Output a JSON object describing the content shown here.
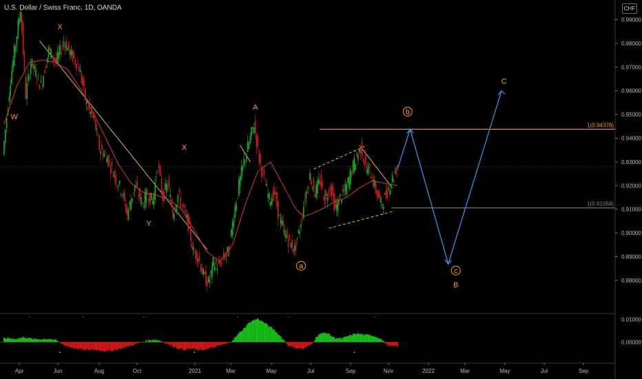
{
  "header": {
    "title": "U.S. Dollar / Swiss Franc, 1D, OANDA",
    "currency_badge": "CHF"
  },
  "colors": {
    "background": "#000000",
    "bull": "#22a82a",
    "bear": "#c62020",
    "ma": "#c23a37",
    "trendline": "#e1b84a",
    "fib": "#ff9d1f",
    "projection": "#3e8fe0",
    "wave_label": "#ff9d1f",
    "dashed_channel": "#f2c232",
    "osc_pos": "#18c218",
    "osc_neg": "#d01818"
  },
  "chart_data": [
    {
      "type": "candlestick",
      "title": "U.S. Dollar / Swiss Franc, 1D, OANDA",
      "ylim": [
        0.875,
        0.995
      ],
      "y_ticks": [
        "0.99000",
        "0.98000",
        "0.97000",
        "0.96000",
        "0.95000",
        "0.94000",
        "0.93000",
        "0.92000",
        "0.91000",
        "0.90000",
        "0.89000",
        "0.88000"
      ],
      "x_ticks": [
        "Apr",
        "Jun",
        "Aug",
        "Oct",
        "2021",
        "Mar",
        "May",
        "Jul",
        "Sep",
        "Nov",
        "2022",
        "Mar",
        "May",
        "Jul",
        "Sep"
      ],
      "price_path": [
        [
          0,
          0.933
        ],
        [
          3,
          0.965
        ],
        [
          5,
          0.98
        ],
        [
          7,
          0.995
        ],
        [
          9,
          0.958
        ],
        [
          11,
          0.972
        ],
        [
          15,
          0.962
        ],
        [
          18,
          0.977
        ],
        [
          21,
          0.972
        ],
        [
          24,
          0.981
        ],
        [
          27,
          0.975
        ],
        [
          30,
          0.97
        ],
        [
          33,
          0.954
        ],
        [
          36,
          0.947
        ],
        [
          38,
          0.936
        ],
        [
          41,
          0.932
        ],
        [
          44,
          0.924
        ],
        [
          47,
          0.917
        ],
        [
          49,
          0.908
        ],
        [
          52,
          0.92
        ],
        [
          55,
          0.912
        ],
        [
          57,
          0.917
        ],
        [
          59,
          0.913
        ],
        [
          61,
          0.929
        ],
        [
          63,
          0.915
        ],
        [
          65,
          0.921
        ],
        [
          67,
          0.908
        ],
        [
          69,
          0.916
        ],
        [
          71,
          0.91
        ],
        [
          73,
          0.904
        ],
        [
          75,
          0.892
        ],
        [
          77,
          0.89
        ],
        [
          79,
          0.882
        ],
        [
          81,
          0.879
        ],
        [
          83,
          0.887
        ],
        [
          85,
          0.886
        ],
        [
          87,
          0.89
        ],
        [
          89,
          0.892
        ],
        [
          91,
          0.908
        ],
        [
          93,
          0.92
        ],
        [
          95,
          0.93
        ],
        [
          97,
          0.938
        ],
        [
          99,
          0.946
        ],
        [
          101,
          0.931
        ],
        [
          103,
          0.922
        ],
        [
          105,
          0.914
        ],
        [
          107,
          0.917
        ],
        [
          109,
          0.906
        ],
        [
          111,
          0.9
        ],
        [
          113,
          0.896
        ],
        [
          115,
          0.893
        ],
        [
          117,
          0.902
        ],
        [
          119,
          0.915
        ],
        [
          121,
          0.924
        ],
        [
          123,
          0.917
        ],
        [
          125,
          0.922
        ],
        [
          127,
          0.914
        ],
        [
          129,
          0.92
        ],
        [
          131,
          0.91
        ],
        [
          133,
          0.915
        ],
        [
          135,
          0.918
        ],
        [
          137,
          0.925
        ],
        [
          139,
          0.931
        ],
        [
          141,
          0.936
        ],
        [
          143,
          0.928
        ],
        [
          145,
          0.925
        ],
        [
          147,
          0.918
        ],
        [
          149,
          0.912
        ],
        [
          151,
          0.916
        ],
        [
          153,
          0.922
        ],
        [
          155,
          0.927
        ]
      ],
      "moving_average": [
        [
          0,
          0.946
        ],
        [
          5,
          0.962
        ],
        [
          10,
          0.972
        ],
        [
          15,
          0.973
        ],
        [
          20,
          0.972
        ],
        [
          25,
          0.969
        ],
        [
          30,
          0.961
        ],
        [
          35,
          0.951
        ],
        [
          40,
          0.94
        ],
        [
          45,
          0.929
        ],
        [
          50,
          0.921
        ],
        [
          55,
          0.917
        ],
        [
          60,
          0.916
        ],
        [
          65,
          0.914
        ],
        [
          70,
          0.91
        ],
        [
          75,
          0.901
        ],
        [
          80,
          0.892
        ],
        [
          85,
          0.888
        ],
        [
          90,
          0.895
        ],
        [
          95,
          0.912
        ],
        [
          100,
          0.926
        ],
        [
          105,
          0.93
        ],
        [
          110,
          0.92
        ],
        [
          115,
          0.91
        ],
        [
          118,
          0.907
        ],
        [
          121,
          0.908
        ],
        [
          125,
          0.91
        ],
        [
          130,
          0.913
        ],
        [
          135,
          0.915
        ],
        [
          140,
          0.919
        ],
        [
          145,
          0.922
        ],
        [
          150,
          0.921
        ],
        [
          155,
          0.92
        ]
      ],
      "projection": [
        [
          155,
          0.927
        ],
        [
          160,
          0.9437
        ],
        [
          175,
          0.887
        ],
        [
          196,
          0.96
        ]
      ],
      "fib_levels": [
        {
          "label": "1(0.94378)",
          "value": 0.94378
        },
        {
          "label": "1(0.91058)",
          "value": 0.91058
        }
      ],
      "wave_labels": [
        {
          "text": "W",
          "x": 4,
          "y": 0.948
        },
        {
          "text": "X",
          "x": 22,
          "y": 0.986
        },
        {
          "text": "Y",
          "x": 57,
          "y": 0.903
        },
        {
          "text": "X",
          "x": 71,
          "y": 0.935
        },
        {
          "text": "A",
          "x": 99,
          "y": 0.952
        },
        {
          "text": "a",
          "x": 117,
          "y": 0.885,
          "circled": true
        },
        {
          "text": "b",
          "x": 159,
          "y": 0.95,
          "circled": true
        },
        {
          "text": "c",
          "x": 178,
          "y": 0.883,
          "circled": true
        },
        {
          "text": "B",
          "x": 178,
          "y": 0.877
        },
        {
          "text": "C",
          "x": 197,
          "y": 0.963
        }
      ]
    },
    {
      "type": "bar",
      "title": "",
      "ylim": [
        -0.004,
        0.012
      ],
      "y_ticks": [
        "0.01000",
        "0.00000"
      ],
      "oscillator": [
        [
          0,
          0.0018
        ],
        [
          5,
          0.0015
        ],
        [
          8,
          0.0022
        ],
        [
          11,
          0.0014
        ],
        [
          14,
          0.0013
        ],
        [
          18,
          0.0015
        ],
        [
          21,
          0.0005
        ],
        [
          23,
          -0.001
        ],
        [
          26,
          -0.0022
        ],
        [
          29,
          -0.003
        ],
        [
          32,
          -0.0036
        ],
        [
          35,
          -0.0032
        ],
        [
          38,
          -0.0037
        ],
        [
          41,
          -0.004
        ],
        [
          44,
          -0.0034
        ],
        [
          47,
          -0.0026
        ],
        [
          50,
          -0.0015
        ],
        [
          53,
          -0.0005
        ],
        [
          56,
          0.0006
        ],
        [
          59,
          0.0012
        ],
        [
          62,
          0.0005
        ],
        [
          65,
          -0.0012
        ],
        [
          68,
          -0.0025
        ],
        [
          71,
          -0.0034
        ],
        [
          74,
          -0.0028
        ],
        [
          77,
          -0.0037
        ],
        [
          80,
          -0.003
        ],
        [
          83,
          -0.0022
        ],
        [
          86,
          -0.0012
        ],
        [
          89,
          -0.0003
        ],
        [
          91,
          0.002
        ],
        [
          94,
          0.0055
        ],
        [
          97,
          0.009
        ],
        [
          100,
          0.0103
        ],
        [
          103,
          0.0082
        ],
        [
          106,
          0.0058
        ],
        [
          109,
          0.0025
        ],
        [
          112,
          -0.0015
        ],
        [
          115,
          -0.0026
        ],
        [
          118,
          -0.003
        ],
        [
          121,
          -0.001
        ],
        [
          124,
          0.0035
        ],
        [
          127,
          0.0042
        ],
        [
          130,
          0.002
        ],
        [
          133,
          0.0015
        ],
        [
          136,
          0.0028
        ],
        [
          139,
          0.0038
        ],
        [
          142,
          0.0032
        ],
        [
          145,
          0.003
        ],
        [
          148,
          0.0018
        ],
        [
          151,
          -0.0012
        ],
        [
          153,
          -0.002
        ],
        [
          155,
          -0.0018
        ]
      ]
    }
  ]
}
